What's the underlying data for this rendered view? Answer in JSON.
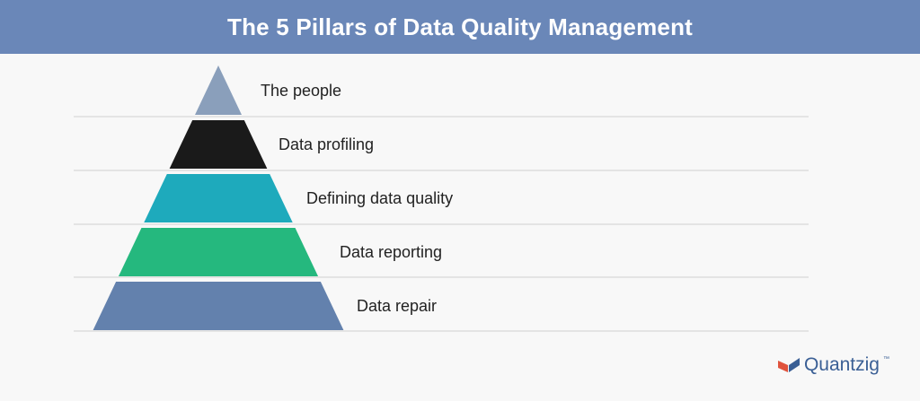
{
  "header": {
    "title": "The 5 Pillars of Data Quality Management",
    "background_color": "#6a87b8"
  },
  "pyramid": {
    "tiers": [
      {
        "label": "The people",
        "color": "#8a9fbb"
      },
      {
        "label": "Data profiling",
        "color": "#1a1a1a"
      },
      {
        "label": "Defining data quality",
        "color": "#1eaabc"
      },
      {
        "label": "Data reporting",
        "color": "#25b87e"
      },
      {
        "label": "Data repair",
        "color": "#6381ad"
      }
    ]
  },
  "logo": {
    "text": "Quantzig",
    "tm": "™",
    "mark_colors": [
      "#e0533d",
      "#3a5f95"
    ]
  }
}
